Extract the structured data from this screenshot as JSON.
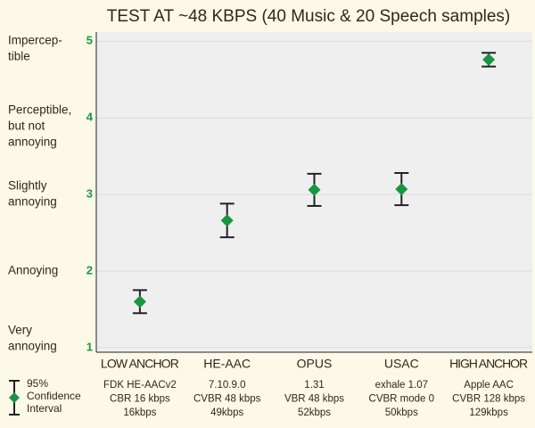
{
  "chart_data": {
    "type": "errorbar",
    "title": "TEST AT ~48 KBPS (40 Music & 20 Speech samples)",
    "categories": [
      "LOW ANCHOR",
      "HE-AAC",
      "OPUS",
      "USAC",
      "HIGH ANCHOR"
    ],
    "details": [
      [
        "FDK HE-AACv2",
        "CBR 16 kbps",
        "16kbps"
      ],
      [
        "7.10.9.0",
        "CVBR 48 kbps",
        "49kbps"
      ],
      [
        "1.31",
        "VBR 48 kbps",
        "52kbps"
      ],
      [
        "exhale 1.07",
        "CVBR mode 0",
        "50kbps"
      ],
      [
        "Apple AAC",
        "CVBR 128 kbps",
        "129kbps"
      ]
    ],
    "values": [
      1.6,
      2.66,
      3.06,
      3.07,
      4.76
    ],
    "errors": [
      0.15,
      0.22,
      0.21,
      0.21,
      0.09
    ],
    "color": "#1a9641",
    "ylim": [
      0.94,
      5.12
    ],
    "yticks": [
      1,
      2,
      3,
      4,
      5
    ],
    "grid": true,
    "quality_labels": [
      [
        "Impercep-",
        "tible"
      ],
      [
        "Perceptible,",
        "but not",
        "annoying"
      ],
      [
        "Slightly",
        "annoying"
      ],
      [
        "Annoying"
      ],
      [
        "Very",
        "annoying"
      ]
    ],
    "legend": [
      "95%",
      "Confidence",
      "Interval"
    ]
  }
}
